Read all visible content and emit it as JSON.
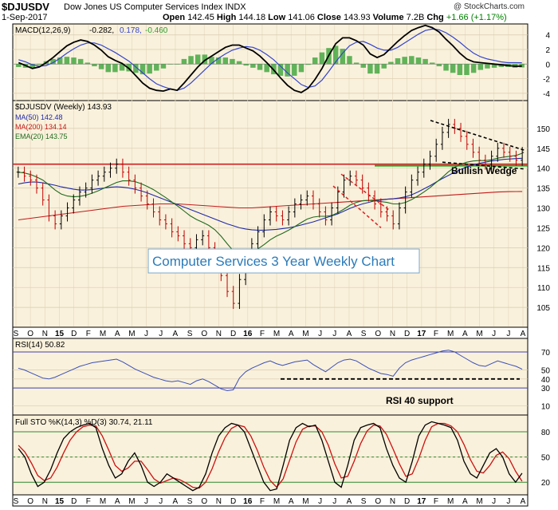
{
  "header": {
    "symbol": "$DJUSDV",
    "name": "Dow Jones US Computer Services Index INDX",
    "copyright": "@ StockCharts.com",
    "date": "1-Sep-2017",
    "open_label": "Open",
    "open": "142.45",
    "high_label": "High",
    "high": "144.18",
    "low_label": "Low",
    "low": "141.06",
    "close_label": "Close",
    "close": "143.93",
    "volume_label": "Volume",
    "volume": "7.2B",
    "chg_label": "Chg",
    "chg": "+1.66 (+1.17%)"
  },
  "colors": {
    "panel_bg": "#faf1dc",
    "price": "#000000",
    "ma50": "#1f2aa8",
    "ma200": "#c21a1a",
    "ema20": "#1e6b1e",
    "macd_hist": "#2e9e2e",
    "macd_signal": "#3344cc",
    "resistance": "#d11f1f",
    "support_green": "#17a317",
    "rsi_line": "#3a4fb8",
    "rsi_bands": "#4040b0",
    "sto_k": "#000000",
    "sto_d": "#cc1111",
    "sto_bands": "#2e8a2e"
  },
  "x_axis": {
    "labels": [
      "S",
      "O",
      "N",
      "15",
      "D",
      "F",
      "M",
      "A",
      "M",
      "J",
      "J",
      "A",
      "S",
      "O",
      "N",
      "D",
      "16",
      "F",
      "M",
      "A",
      "M",
      "J",
      "J",
      "A",
      "S",
      "O",
      "N",
      "D",
      "17",
      "F",
      "M",
      "A",
      "M",
      "J",
      "J",
      "A"
    ]
  },
  "chart_data": [
    {
      "type": "bar",
      "panel": "macd",
      "title": "MACD(12,26,9) -0.282, 0.178, -0.460",
      "legend": [
        {
          "name": "MACD(12,26,9)",
          "value": "-0.282"
        },
        {
          "name": "signal",
          "value": "0.178"
        },
        {
          "name": "histogram",
          "value": "-0.460"
        }
      ],
      "ylim": [
        -5,
        5.5
      ],
      "y_ticks": [
        4,
        2,
        0,
        -2,
        -4
      ],
      "series": [
        {
          "name": "MACD",
          "color": "#000000",
          "values": [
            0.2,
            -0.2,
            -0.6,
            -0.4,
            0.2,
            0.9,
            1.7,
            2.5,
            3.0,
            3.3,
            3.1,
            2.6,
            1.9,
            1.0,
            0.5,
            0.1,
            -0.6,
            -1.6,
            -2.6,
            -3.3,
            -3.6,
            -3.7,
            -3.4,
            -3.6,
            -2.6,
            -1.5,
            -0.4,
            0.5,
            1.1,
            1.7,
            2.3,
            2.6,
            2.6,
            2.2,
            1.8,
            1.1,
            0.2,
            -0.8,
            -1.9,
            -2.9,
            -3.6,
            -3.9,
            -3.3,
            -2.1,
            -0.6,
            1.2,
            2.8,
            3.6,
            3.6,
            3.2,
            2.6,
            1.4,
            0.9,
            1.3,
            2.2,
            3.1,
            3.9,
            4.6,
            5.0,
            5.3,
            5.0,
            4.4,
            3.4,
            2.5,
            1.5,
            0.7,
            0.3,
            0.2,
            0.1,
            0.0,
            -0.1,
            -0.2,
            -0.3,
            -0.28
          ]
        },
        {
          "name": "Signal",
          "color": "#3344cc",
          "values": [
            0.6,
            0.3,
            -0.1,
            -0.3,
            -0.2,
            0.2,
            0.8,
            1.5,
            2.1,
            2.6,
            2.9,
            2.9,
            2.6,
            2.1,
            1.6,
            1.0,
            0.4,
            -0.4,
            -1.2,
            -2.0,
            -2.7,
            -3.1,
            -3.4,
            -3.6,
            -3.3,
            -2.6,
            -1.7,
            -0.8,
            0.1,
            0.8,
            1.4,
            1.9,
            2.2,
            2.4,
            2.3,
            1.9,
            1.3,
            0.6,
            -0.3,
            -1.2,
            -2.0,
            -2.8,
            -3.2,
            -3.0,
            -2.2,
            -1.0,
            0.3,
            1.5,
            2.5,
            3.0,
            3.1,
            2.7,
            2.2,
            1.9,
            1.9,
            2.3,
            2.9,
            3.5,
            4.1,
            4.6,
            4.8,
            4.7,
            4.3,
            3.7,
            3.0,
            2.2,
            1.5,
            1.0,
            0.7,
            0.5,
            0.3,
            0.2,
            0.2,
            0.18
          ]
        },
        {
          "name": "Histogram",
          "color": "#2e9e2e",
          "values": [
            -0.4,
            -0.5,
            -0.5,
            -0.1,
            0.4,
            0.7,
            0.9,
            1.0,
            0.9,
            0.7,
            0.2,
            -0.3,
            -0.7,
            -1.1,
            -1.1,
            -0.9,
            -1.0,
            -1.2,
            -1.4,
            -1.3,
            -0.9,
            -0.6,
            0.0,
            0.0,
            0.7,
            1.1,
            1.3,
            1.3,
            1.0,
            0.9,
            0.9,
            0.7,
            0.4,
            -0.2,
            -0.5,
            -0.8,
            -1.1,
            -1.4,
            -1.6,
            -1.7,
            -1.6,
            -1.1,
            -0.1,
            0.9,
            1.6,
            2.2,
            2.5,
            2.1,
            1.1,
            0.2,
            -0.5,
            -1.3,
            -1.3,
            -0.6,
            0.3,
            0.8,
            1.0,
            1.1,
            0.9,
            0.7,
            0.2,
            -0.3,
            -0.9,
            -1.2,
            -1.5,
            -1.5,
            -1.2,
            -0.8,
            -0.6,
            -0.5,
            -0.4,
            -0.4,
            -0.5,
            -0.46
          ]
        }
      ]
    },
    {
      "type": "line",
      "panel": "price",
      "title": "$DJUSDV (Weekly) 143.93",
      "ylim": [
        100,
        157
      ],
      "y_ticks": [
        150,
        145,
        140,
        135,
        130,
        125,
        120,
        115,
        110,
        105
      ],
      "legend": [
        {
          "name": "MA(50)",
          "value": "142.48"
        },
        {
          "name": "MA(200)",
          "value": "134.14"
        },
        {
          "name": "EMA(20)",
          "value": "143.75"
        }
      ],
      "series": [
        {
          "name": "$DJUSDV",
          "color": "#000000",
          "values": [
            139,
            138,
            137,
            135,
            132,
            128,
            126,
            128,
            130,
            132,
            134,
            135,
            137,
            138,
            139,
            140,
            141,
            139,
            137,
            135,
            133,
            131,
            129,
            127,
            126,
            124,
            123,
            121,
            120,
            122,
            123,
            120,
            117,
            113,
            109,
            106,
            112,
            118,
            121,
            124,
            127,
            129,
            128,
            127,
            129,
            131,
            132,
            133,
            131,
            129,
            127,
            130,
            134,
            137,
            138,
            137,
            135,
            133,
            131,
            129,
            128,
            126,
            130,
            134,
            137,
            139,
            141,
            143,
            146,
            149,
            151,
            150,
            148,
            146,
            144,
            142,
            141,
            143,
            145,
            144,
            143,
            142,
            143.93
          ]
        },
        {
          "name": "MA(50)",
          "color": "#1f2aa8",
          "values": [
            136,
            136.3,
            136.5,
            136.5,
            136.3,
            136,
            135.7,
            135.3,
            135,
            134.7,
            134.5,
            134.5,
            134.6,
            134.8,
            135,
            135.2,
            135.3,
            135.2,
            135,
            134.7,
            134.3,
            133.8,
            133.2,
            132.6,
            132,
            131.4,
            130.8,
            130.2,
            129.6,
            129,
            128.4,
            127.8,
            127.2,
            126.6,
            126,
            125.5,
            125,
            124.7,
            124.5,
            124.4,
            124.4,
            124.5,
            124.6,
            124.8,
            125,
            125.3,
            125.7,
            126.1,
            126.5,
            127,
            127.5,
            128,
            128.5,
            129.2,
            129.9,
            130.5,
            131,
            131.4,
            131.8,
            132,
            132.2,
            132.3,
            132.5,
            132.8,
            133.3,
            134,
            134.8,
            135.6,
            136.5,
            137.4,
            138.2,
            139,
            139.7,
            140.3,
            140.8,
            141.2,
            141.5,
            141.8,
            142,
            142.2,
            142.3,
            142.4,
            142.48
          ]
        },
        {
          "name": "MA(200)",
          "color": "#c21a1a",
          "values": [
            127,
            127.2,
            127.4,
            127.6,
            127.8,
            128,
            128.2,
            128.4,
            128.6,
            128.8,
            129,
            129.2,
            129.4,
            129.6,
            129.8,
            130,
            130.2,
            130.4,
            130.5,
            130.6,
            130.7,
            130.8,
            130.9,
            131,
            131,
            131,
            131,
            130.9,
            130.8,
            130.7,
            130.6,
            130.5,
            130.4,
            130.3,
            130.2,
            130.1,
            130,
            130,
            130,
            130.1,
            130.2,
            130.3,
            130.4,
            130.5,
            130.6,
            130.7,
            130.8,
            130.9,
            131,
            131.1,
            131.2,
            131.3,
            131.4,
            131.5,
            131.6,
            131.7,
            131.8,
            131.9,
            132,
            132.1,
            132.2,
            132.3,
            132.4,
            132.5,
            132.6,
            132.7,
            132.8,
            132.9,
            133,
            133.1,
            133.2,
            133.3,
            133.4,
            133.5,
            133.6,
            133.7,
            133.8,
            133.9,
            134,
            134.05,
            134.1,
            134.12,
            134.14
          ]
        },
        {
          "name": "EMA(20)",
          "color": "#1e6b1e",
          "values": [
            139,
            138.8,
            138.4,
            137.8,
            137,
            135.8,
            134.5,
            133.5,
            133,
            132.8,
            132.9,
            133.2,
            133.7,
            134.3,
            135,
            135.7,
            136.4,
            136.8,
            136.8,
            136.6,
            136.1,
            135.4,
            134.6,
            133.6,
            132.6,
            131.5,
            130.4,
            129.2,
            128,
            127.1,
            126.4,
            125.6,
            124.5,
            122.9,
            121,
            119.2,
            118.5,
            118.5,
            118.9,
            119.7,
            120.8,
            122,
            122.9,
            123.6,
            124.4,
            125.3,
            126.3,
            127.2,
            127.7,
            127.9,
            127.9,
            128.1,
            128.8,
            129.7,
            130.7,
            131.4,
            131.8,
            131.9,
            131.8,
            131.6,
            131.4,
            131,
            131,
            131.4,
            132.1,
            133,
            134,
            135.1,
            136.4,
            137.7,
            139.1,
            140.2,
            141,
            141.5,
            141.8,
            141.9,
            141.9,
            142.1,
            142.5,
            142.8,
            143,
            143.2,
            143.75
          ]
        }
      ],
      "annotations": [
        {
          "text": "Bullish Wedge"
        },
        {
          "text": "Computer Services 3 Year Weekly Chart"
        }
      ],
      "horizontal_lines": [
        {
          "name": "resistance",
          "value": 141,
          "color": "#d11f1f"
        },
        {
          "name": "support",
          "value": 140.6,
          "color": "#17a317"
        }
      ]
    },
    {
      "type": "line",
      "panel": "rsi",
      "title": "RSI(14) 50.82",
      "ylim": [
        0,
        85
      ],
      "y_ticks": [
        70,
        50,
        40,
        30,
        10
      ],
      "bands": [
        30,
        70
      ],
      "annotations": [
        {
          "text": "RSI 40 support"
        }
      ],
      "series": [
        {
          "name": "RSI(14)",
          "color": "#3a4fb8",
          "values": [
            52,
            50,
            47,
            44,
            41,
            40,
            42,
            45,
            48,
            51,
            54,
            56,
            58,
            59,
            60,
            61,
            62,
            59,
            55,
            51,
            48,
            45,
            42,
            40,
            38,
            37,
            38,
            36,
            34,
            38,
            40,
            37,
            33,
            29,
            27,
            28,
            41,
            48,
            52,
            55,
            58,
            60,
            57,
            55,
            57,
            59,
            60,
            61,
            56,
            52,
            48,
            53,
            58,
            61,
            62,
            60,
            56,
            52,
            49,
            46,
            45,
            43,
            52,
            58,
            61,
            63,
            65,
            67,
            69,
            71,
            72,
            70,
            66,
            62,
            58,
            55,
            54,
            57,
            60,
            58,
            56,
            54,
            50.82
          ]
        }
      ]
    },
    {
      "type": "line",
      "panel": "stochastic",
      "title": "Full STO %K(14,3) %D(3) 30.74, 21.11",
      "ylim": [
        5,
        100
      ],
      "y_ticks": [
        80,
        50,
        20
      ],
      "bands": [
        20,
        50,
        80
      ],
      "series": [
        {
          "name": "%K(14,3)",
          "color": "#000000",
          "values": [
            60,
            50,
            30,
            15,
            20,
            35,
            55,
            72,
            80,
            85,
            88,
            90,
            85,
            60,
            40,
            25,
            30,
            45,
            55,
            40,
            20,
            15,
            20,
            30,
            25,
            20,
            15,
            10,
            14,
            30,
            55,
            75,
            85,
            90,
            88,
            80,
            60,
            40,
            20,
            10,
            12,
            40,
            70,
            85,
            90,
            86,
            88,
            70,
            45,
            20,
            14,
            40,
            70,
            85,
            88,
            90,
            85,
            60,
            40,
            25,
            20,
            45,
            75,
            88,
            92,
            90,
            88,
            85,
            70,
            45,
            30,
            25,
            40,
            55,
            60,
            50,
            30,
            20,
            30.74
          ]
        },
        {
          "name": "%D(3)",
          "color": "#cc1111",
          "values": [
            64,
            56,
            43,
            28,
            22,
            25,
            38,
            55,
            70,
            80,
            86,
            88,
            87,
            75,
            58,
            40,
            33,
            37,
            45,
            45,
            35,
            24,
            19,
            22,
            25,
            23,
            19,
            14,
            13,
            20,
            36,
            56,
            73,
            84,
            88,
            86,
            75,
            58,
            38,
            22,
            14,
            24,
            46,
            68,
            83,
            87,
            87,
            80,
            64,
            42,
            25,
            27,
            45,
            66,
            81,
            88,
            87,
            77,
            60,
            42,
            27,
            30,
            48,
            70,
            86,
            90,
            90,
            87,
            80,
            65,
            47,
            33,
            31,
            40,
            52,
            56,
            48,
            33,
            21.11
          ]
        }
      ]
    }
  ]
}
